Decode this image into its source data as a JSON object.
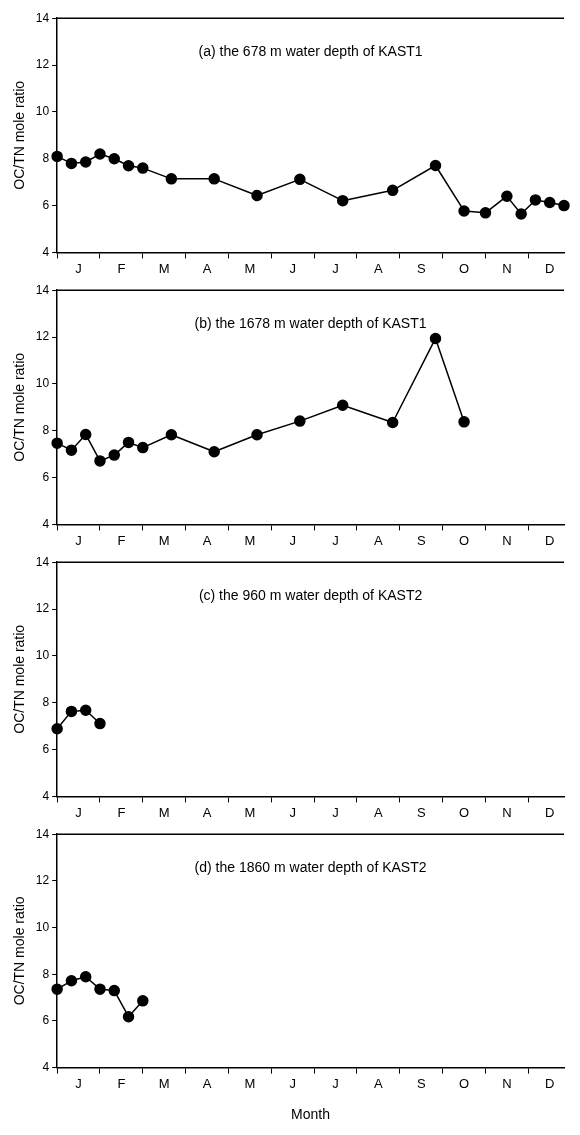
{
  "chart_data": [
    {
      "type": "line",
      "title": "(a) the 678 m water depth of KAST1",
      "ylabel": "OC/TN mole ratio",
      "color": "#000000",
      "marker": "circle",
      "line_style": "solid",
      "categories": [
        null,
        null,
        null,
        "J",
        null,
        null,
        null,
        null,
        null,
        "F",
        null,
        null,
        null,
        null,
        null,
        "M",
        null,
        null,
        null,
        null,
        null,
        "A",
        null,
        null,
        null,
        null,
        null,
        "M",
        null,
        null,
        null,
        null,
        null,
        "J",
        null,
        null,
        null,
        null,
        null,
        "J",
        null,
        null,
        null,
        null,
        null,
        "A",
        null,
        null,
        null,
        null,
        null,
        "S",
        null,
        null,
        null,
        null,
        null,
        "O",
        null,
        null,
        null,
        null,
        null,
        "N",
        null,
        null,
        null,
        null,
        null,
        "D",
        null,
        null
      ],
      "values": [
        8.1,
        null,
        7.8,
        null,
        7.86,
        null,
        8.2,
        null,
        8.0,
        null,
        7.7,
        null,
        7.6,
        null,
        null,
        null,
        7.14,
        null,
        null,
        null,
        null,
        null,
        7.14,
        null,
        null,
        null,
        null,
        null,
        6.43,
        null,
        null,
        null,
        null,
        null,
        7.12,
        null,
        null,
        null,
        null,
        null,
        6.21,
        null,
        null,
        null,
        null,
        null,
        null,
        6.65,
        null,
        null,
        null,
        null,
        null,
        7.71,
        null,
        null,
        null,
        5.77,
        null,
        null,
        5.69,
        null,
        null,
        6.4,
        null,
        5.64,
        null,
        6.24,
        null,
        6.13,
        null,
        6.0
      ],
      "ylim": [
        4,
        14
      ],
      "yticks": [
        4,
        6,
        8,
        10,
        12,
        14
      ]
    },
    {
      "type": "line",
      "title": "(b) the 1678 m water depth of KAST1",
      "ylabel": "OC/TN mole ratio",
      "color": "#000000",
      "marker": "circle",
      "line_style": "solid",
      "categories": [
        null,
        null,
        null,
        "J",
        null,
        null,
        null,
        null,
        null,
        "F",
        null,
        null,
        null,
        null,
        null,
        "M",
        null,
        null,
        null,
        null,
        null,
        "A",
        null,
        null,
        null,
        null,
        null,
        "M",
        null,
        null,
        null,
        null,
        null,
        "J",
        null,
        null,
        null,
        null,
        null,
        "J",
        null,
        null,
        null,
        null,
        null,
        "A",
        null,
        null,
        null,
        null,
        null,
        "S",
        null,
        null,
        null,
        null,
        null,
        "O",
        null,
        null,
        null,
        null,
        null,
        "N",
        null,
        null,
        null,
        null,
        null,
        "D",
        null,
        null
      ],
      "values": [
        7.47,
        null,
        7.17,
        null,
        7.84,
        null,
        6.71,
        null,
        6.96,
        null,
        7.5,
        null,
        7.28,
        null,
        null,
        null,
        7.83,
        null,
        null,
        null,
        null,
        null,
        7.1,
        null,
        null,
        null,
        null,
        null,
        7.83,
        null,
        null,
        null,
        null,
        null,
        8.41,
        null,
        null,
        null,
        null,
        null,
        9.09,
        null,
        null,
        null,
        null,
        null,
        null,
        8.35,
        null,
        null,
        null,
        null,
        null,
        11.94,
        null,
        null,
        null,
        8.38,
        null,
        null,
        null,
        null,
        null,
        null,
        null,
        null,
        null,
        null,
        null,
        null,
        null,
        null
      ],
      "ylim": [
        4,
        14
      ],
      "yticks": [
        4,
        6,
        8,
        10,
        12,
        14
      ]
    },
    {
      "type": "line",
      "title": "(c) the 960 m water depth of KAST2",
      "ylabel": "OC/TN mole ratio",
      "color": "#000000",
      "marker": "circle",
      "line_style": "solid",
      "categories": [
        null,
        null,
        null,
        "J",
        null,
        null,
        null,
        null,
        null,
        "F",
        null,
        null,
        null,
        null,
        null,
        "M",
        null,
        null,
        null,
        null,
        null,
        "A",
        null,
        null,
        null,
        null,
        null,
        "M",
        null,
        null,
        null,
        null,
        null,
        "J",
        null,
        null,
        null,
        null,
        null,
        "J",
        null,
        null,
        null,
        null,
        null,
        "A",
        null,
        null,
        null,
        null,
        null,
        "S",
        null,
        null,
        null,
        null,
        null,
        "O",
        null,
        null,
        null,
        null,
        null,
        "N",
        null,
        null,
        null,
        null,
        null,
        "D",
        null,
        null
      ],
      "values": [
        6.89,
        null,
        7.63,
        null,
        7.68,
        null,
        7.11,
        null,
        null,
        null,
        null,
        null,
        null,
        null,
        null,
        null,
        null,
        null,
        null,
        null,
        null,
        null,
        null,
        null,
        null,
        null,
        null,
        null,
        null,
        null,
        null,
        null,
        null,
        null,
        null,
        null,
        null,
        null,
        null,
        null,
        null,
        null,
        null,
        null,
        null,
        null,
        null,
        null,
        null,
        null,
        null,
        null,
        null,
        null,
        null,
        null,
        null,
        null,
        null,
        null,
        null,
        null,
        null,
        null,
        null,
        null,
        null,
        null,
        null,
        null,
        null,
        null
      ],
      "ylim": [
        4,
        14
      ],
      "yticks": [
        4,
        6,
        8,
        10,
        12,
        14
      ]
    },
    {
      "type": "line",
      "title": "(d) the 1860 m water depth of KAST2",
      "xlabel": "Month",
      "ylabel": "OC/TN mole ratio",
      "color": "#000000",
      "marker": "circle",
      "line_style": "solid",
      "categories": [
        null,
        null,
        null,
        "J",
        null,
        null,
        null,
        null,
        null,
        "F",
        null,
        null,
        null,
        null,
        null,
        "M",
        null,
        null,
        null,
        null,
        null,
        "A",
        null,
        null,
        null,
        null,
        null,
        "M",
        null,
        null,
        null,
        null,
        null,
        "J",
        null,
        null,
        null,
        null,
        null,
        "J",
        null,
        null,
        null,
        null,
        null,
        "A",
        null,
        null,
        null,
        null,
        null,
        "S",
        null,
        null,
        null,
        null,
        null,
        "O",
        null,
        null,
        null,
        null,
        null,
        "N",
        null,
        null,
        null,
        null,
        null,
        "D",
        null,
        null
      ],
      "values": [
        7.36,
        null,
        7.72,
        null,
        7.89,
        null,
        7.36,
        null,
        7.3,
        null,
        6.18,
        null,
        6.86,
        null,
        null,
        null,
        null,
        null,
        null,
        null,
        null,
        null,
        null,
        null,
        null,
        null,
        null,
        null,
        null,
        null,
        null,
        null,
        null,
        null,
        null,
        null,
        null,
        null,
        null,
        null,
        null,
        null,
        null,
        null,
        null,
        null,
        null,
        null,
        null,
        null,
        null,
        null,
        null,
        null,
        null,
        null,
        null,
        null,
        null,
        null,
        null,
        null,
        null,
        null,
        null,
        null,
        null,
        null,
        null,
        null,
        null,
        null
      ],
      "ylim": [
        4,
        14
      ],
      "yticks": [
        4,
        6,
        8,
        10,
        12,
        14
      ]
    }
  ]
}
